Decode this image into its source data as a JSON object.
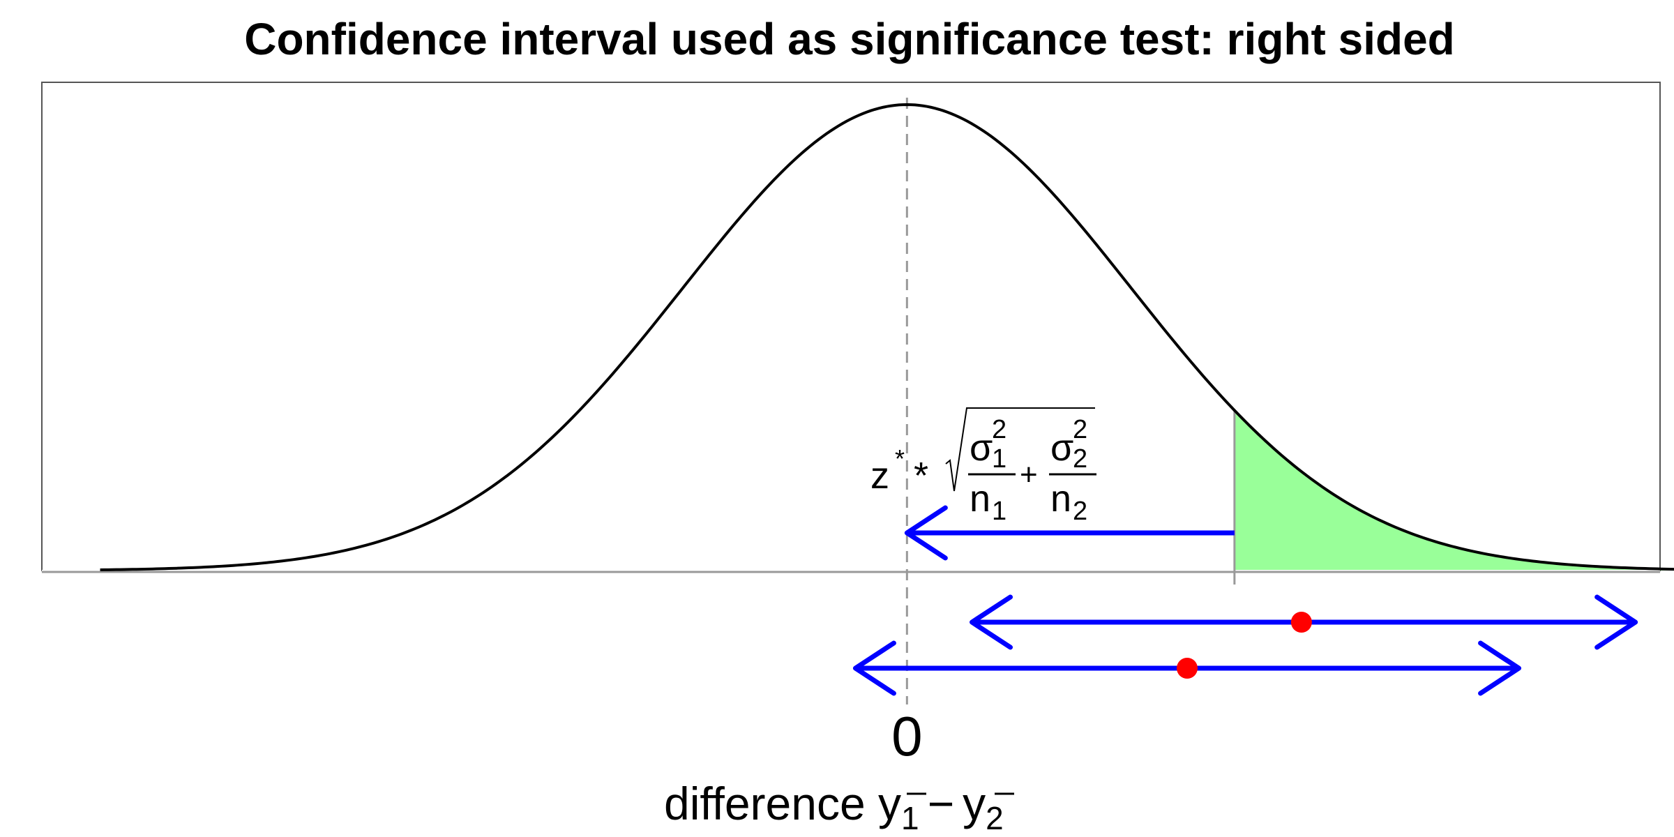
{
  "chart_data": {
    "type": "area",
    "title": "Confidence interval used as significance test: right sided",
    "xlabel": {
      "prefix": "difference ",
      "term1": "y",
      "sub1": "1",
      "operator": "−",
      "term2": "y",
      "sub2": "2"
    },
    "x_ticks": [
      {
        "value": 0,
        "label": "0"
      }
    ],
    "xlim": [
      -3.86,
      3.36
    ],
    "grid": false,
    "legend": "none",
    "density_curve": {
      "distribution": "normal",
      "mean": 0,
      "sd": 1,
      "color": "#000000"
    },
    "critical_value": 1.4612,
    "shaded_region": {
      "from": 1.4612,
      "to": 3.55,
      "color": "#99ff99"
    },
    "null_line": {
      "x": 0,
      "style": "dashed",
      "color": "#999999"
    },
    "margin_arrow": {
      "from": 1.4612,
      "to": 0,
      "color": "#0000ff"
    },
    "margin_formula": {
      "z": "z",
      "star": "*",
      "times": "*",
      "sigma1": "σ",
      "sigma1_sup": "2",
      "sigma1_sub": "1",
      "n1": "n",
      "n1_sub": "1",
      "plus": "+",
      "sigma2": "σ",
      "sigma2_sup": "2",
      "sigma2_sub": "2",
      "n2": "n",
      "n2_sub": "2"
    },
    "intervals": [
      {
        "lower": 0.29,
        "point": 1.76,
        "upper": 3.25,
        "color": "#0000ff",
        "point_color": "#ff0000"
      },
      {
        "lower": -0.23,
        "point": 1.25,
        "upper": 2.73,
        "color": "#0000ff",
        "point_color": "#ff0000"
      }
    ]
  }
}
